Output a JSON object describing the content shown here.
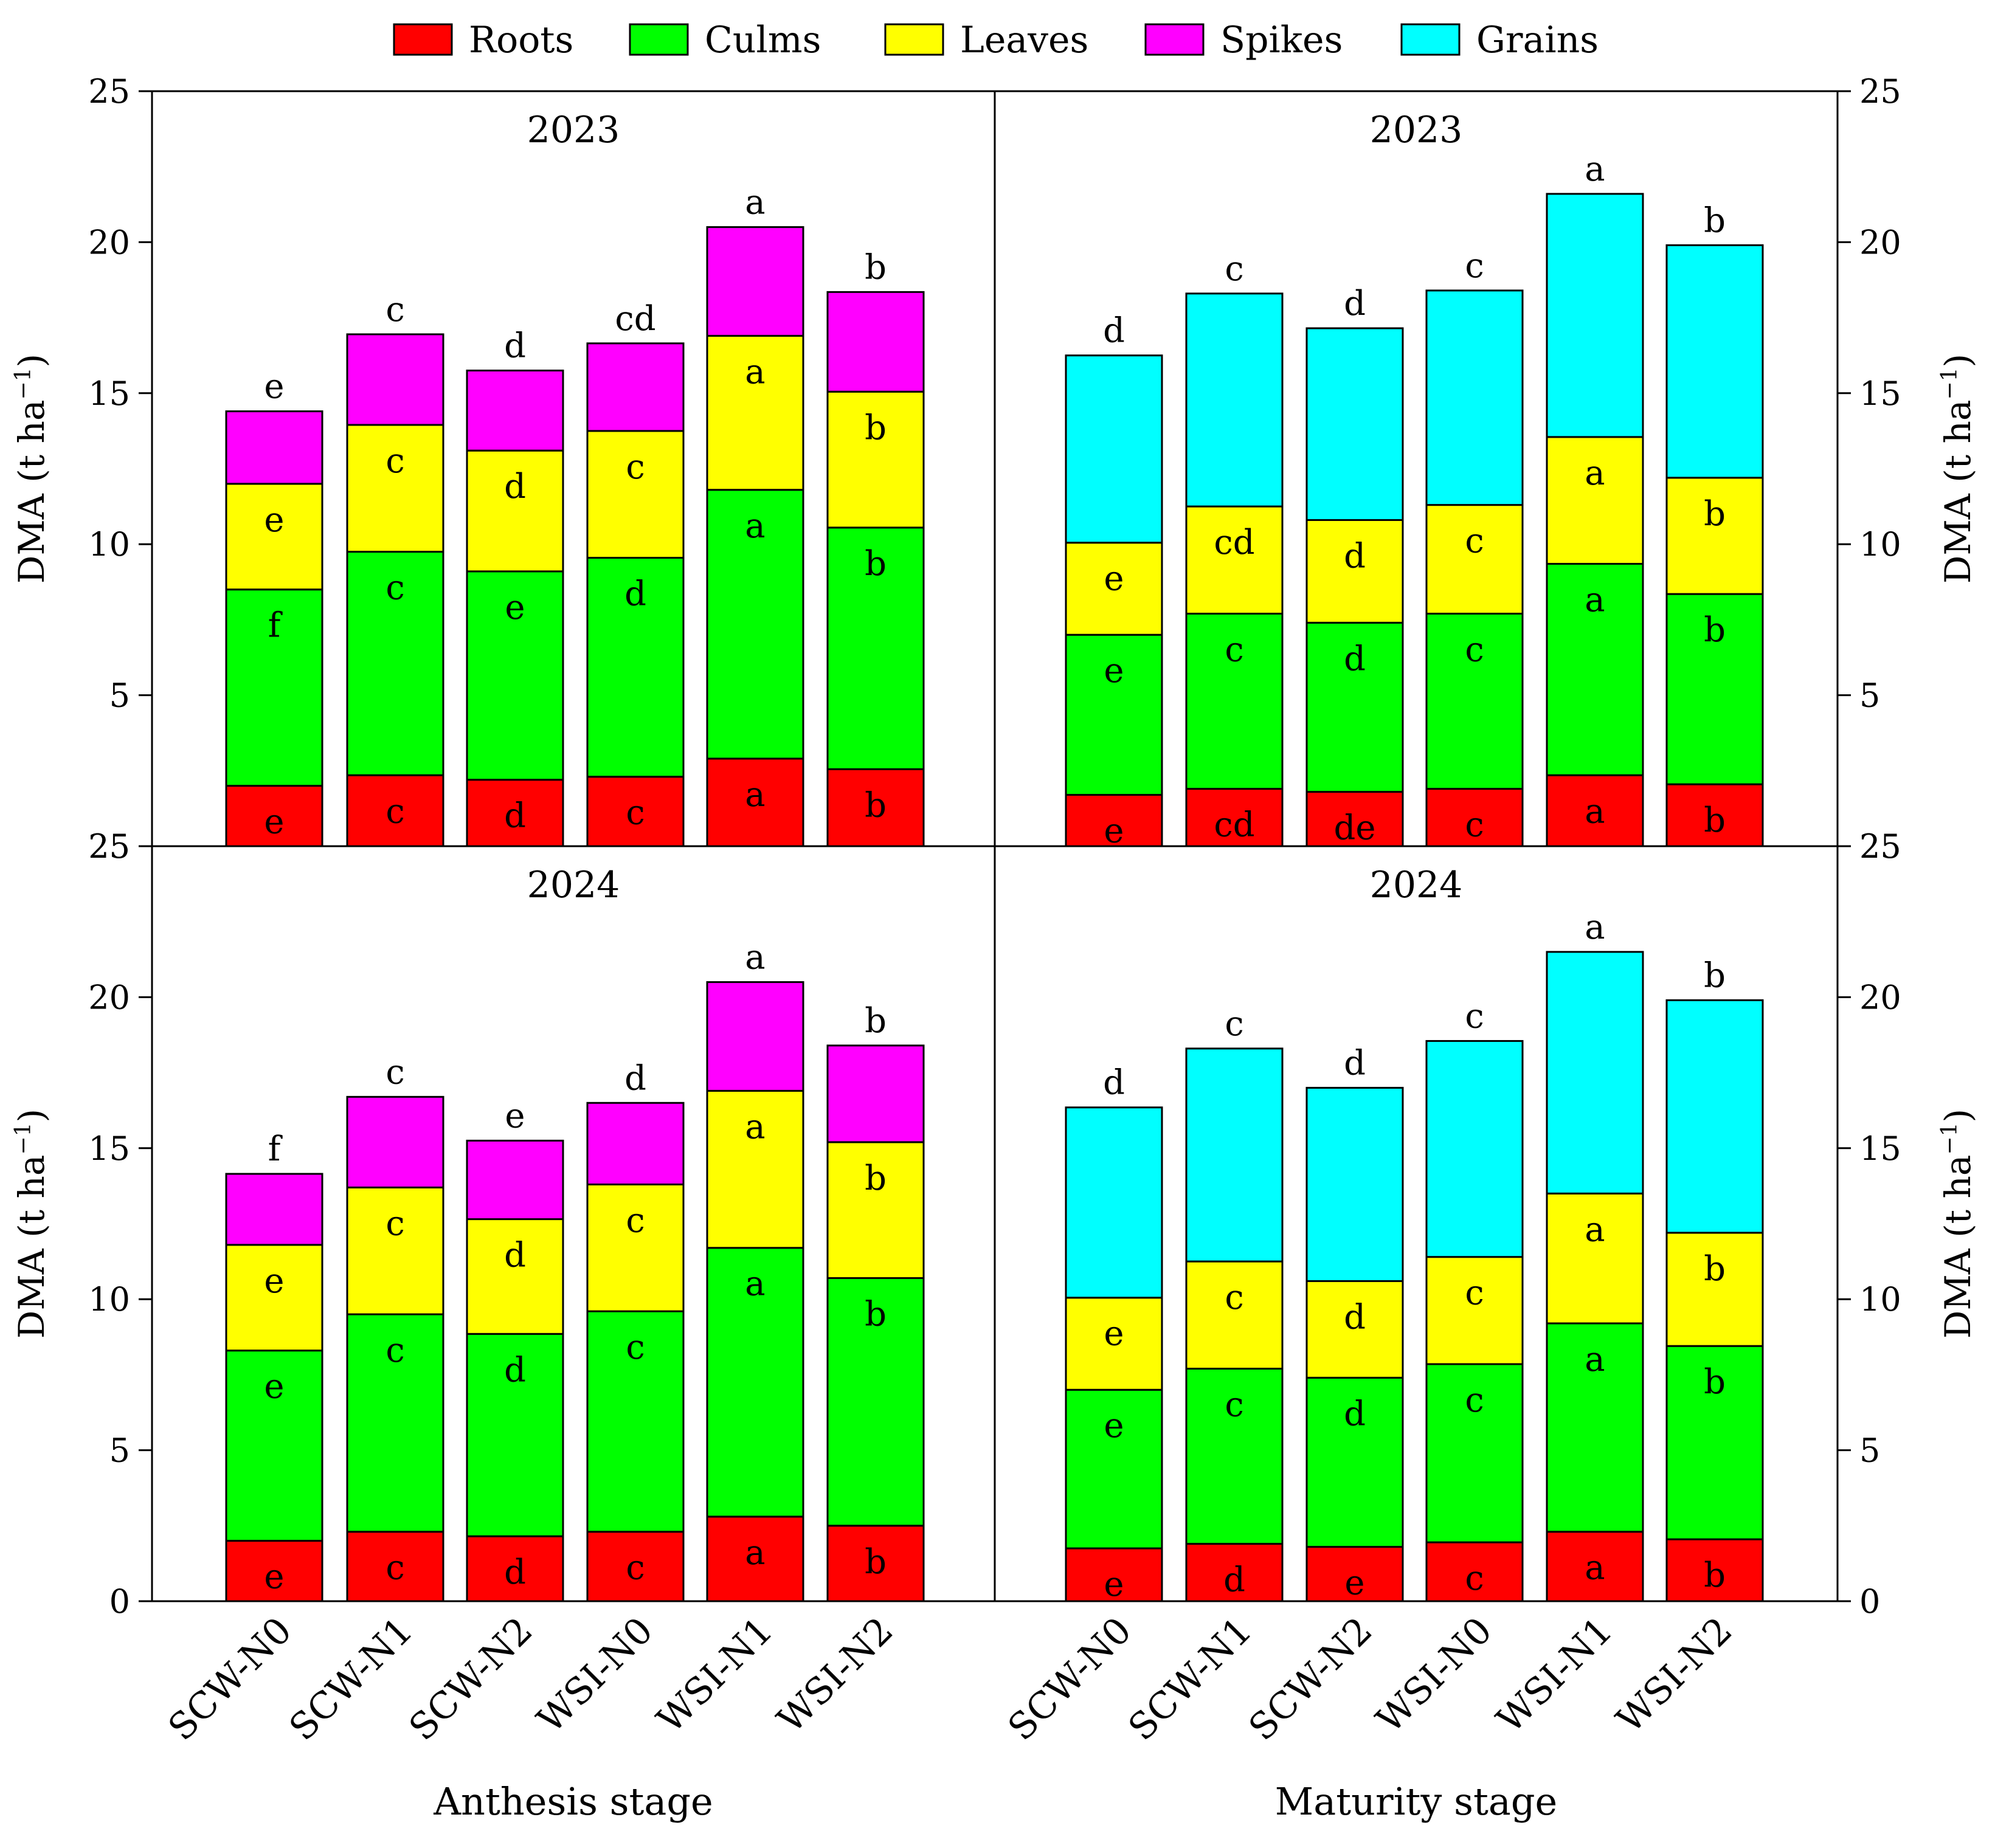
{
  "chart_data": {
    "type": "bar",
    "stacked": true,
    "legend": {
      "position": "top-center",
      "entries": [
        {
          "name": "Roots",
          "color": "#ff0000"
        },
        {
          "name": "Culms",
          "color": "#00ff00"
        },
        {
          "name": "Leaves",
          "color": "#ffff00"
        },
        {
          "name": "Spikes",
          "color": "#ff00ff"
        },
        {
          "name": "Grains",
          "color": "#00ffff"
        }
      ]
    },
    "categories": [
      "SCW-N0",
      "SCW-N1",
      "SCW-N2",
      "WSI-N0",
      "WSI-N1",
      "WSI-N2"
    ],
    "ylabel_left": "DMA (t ha",
    "ylabel_right": "DMA (t ha",
    "ylabel_sup": "−1",
    "ylabel_close": ")",
    "ylim": [
      0,
      25
    ],
    "yticks": [
      "0",
      "5",
      "10",
      "15",
      "20",
      "25"
    ],
    "top_panel_tick_labels": [
      "25",
      "5",
      "10",
      "15",
      "20",
      "25"
    ],
    "stage_labels": [
      "Anthesis stage",
      "Maturity stage"
    ],
    "panels": [
      {
        "year": "2023",
        "stage": "Anthesis stage",
        "series": [
          {
            "name": "Roots",
            "values": [
              2.0,
              2.35,
              2.2,
              2.3,
              2.9,
              2.55
            ],
            "letters": [
              "e",
              "c",
              "d",
              "c",
              "a",
              "b"
            ]
          },
          {
            "name": "Culms",
            "values": [
              6.5,
              7.4,
              6.9,
              7.25,
              8.9,
              8.0
            ],
            "letters": [
              "f",
              "c",
              "e",
              "d",
              "a",
              "b"
            ]
          },
          {
            "name": "Leaves",
            "values": [
              3.5,
              4.2,
              4.0,
              4.2,
              5.1,
              4.5
            ],
            "letters": [
              "e",
              "c",
              "d",
              "c",
              "a",
              "b"
            ]
          },
          {
            "name": "Spikes",
            "values": [
              2.4,
              3.0,
              2.65,
              2.9,
              3.6,
              3.3
            ],
            "letters": [
              "e",
              "c",
              "d",
              "cd",
              "a",
              "b"
            ]
          }
        ]
      },
      {
        "year": "2023",
        "stage": "Maturity stage",
        "series": [
          {
            "name": "Roots",
            "values": [
              1.7,
              1.9,
              1.8,
              1.9,
              2.35,
              2.05
            ],
            "letters": [
              "e",
              "cd",
              "de",
              "c",
              "a",
              "b"
            ]
          },
          {
            "name": "Culms",
            "values": [
              5.3,
              5.8,
              5.6,
              5.8,
              7.0,
              6.3
            ],
            "letters": [
              "e",
              "c",
              "d",
              "c",
              "a",
              "b"
            ]
          },
          {
            "name": "Leaves",
            "values": [
              3.05,
              3.55,
              3.4,
              3.6,
              4.2,
              3.85
            ],
            "letters": [
              "e",
              "cd",
              "d",
              "c",
              "a",
              "b"
            ]
          },
          {
            "name": "Grains",
            "values": [
              6.2,
              7.05,
              6.35,
              7.1,
              8.05,
              7.7
            ],
            "letters": [
              "d",
              "c",
              "d",
              "c",
              "a",
              "b"
            ]
          }
        ]
      },
      {
        "year": "2024",
        "stage": "Anthesis stage",
        "series": [
          {
            "name": "Roots",
            "values": [
              2.0,
              2.3,
              2.15,
              2.3,
              2.8,
              2.5
            ],
            "letters": [
              "e",
              "c",
              "d",
              "c",
              "a",
              "b"
            ]
          },
          {
            "name": "Culms",
            "values": [
              6.3,
              7.2,
              6.7,
              7.3,
              8.9,
              8.2
            ],
            "letters": [
              "e",
              "c",
              "d",
              "c",
              "a",
              "b"
            ]
          },
          {
            "name": "Leaves",
            "values": [
              3.5,
              4.2,
              3.8,
              4.2,
              5.2,
              4.5
            ],
            "letters": [
              "e",
              "c",
              "d",
              "c",
              "a",
              "b"
            ]
          },
          {
            "name": "Spikes",
            "values": [
              2.35,
              3.0,
              2.6,
              2.7,
              3.6,
              3.2
            ],
            "letters": [
              "f",
              "c",
              "e",
              "d",
              "a",
              "b"
            ]
          }
        ]
      },
      {
        "year": "2024",
        "stage": "Maturity stage",
        "series": [
          {
            "name": "Roots",
            "values": [
              1.75,
              1.9,
              1.8,
              1.95,
              2.3,
              2.05
            ],
            "letters": [
              "e",
              "d",
              "e",
              "c",
              "a",
              "b"
            ]
          },
          {
            "name": "Culms",
            "values": [
              5.25,
              5.8,
              5.6,
              5.9,
              6.9,
              6.4
            ],
            "letters": [
              "e",
              "c",
              "d",
              "c",
              "a",
              "b"
            ]
          },
          {
            "name": "Leaves",
            "values": [
              3.05,
              3.55,
              3.2,
              3.55,
              4.3,
              3.75
            ],
            "letters": [
              "e",
              "c",
              "d",
              "c",
              "a",
              "b"
            ]
          },
          {
            "name": "Grains",
            "values": [
              6.3,
              7.05,
              6.4,
              7.15,
              8.0,
              7.7
            ],
            "letters": [
              "d",
              "c",
              "d",
              "c",
              "a",
              "b"
            ]
          }
        ]
      }
    ]
  }
}
